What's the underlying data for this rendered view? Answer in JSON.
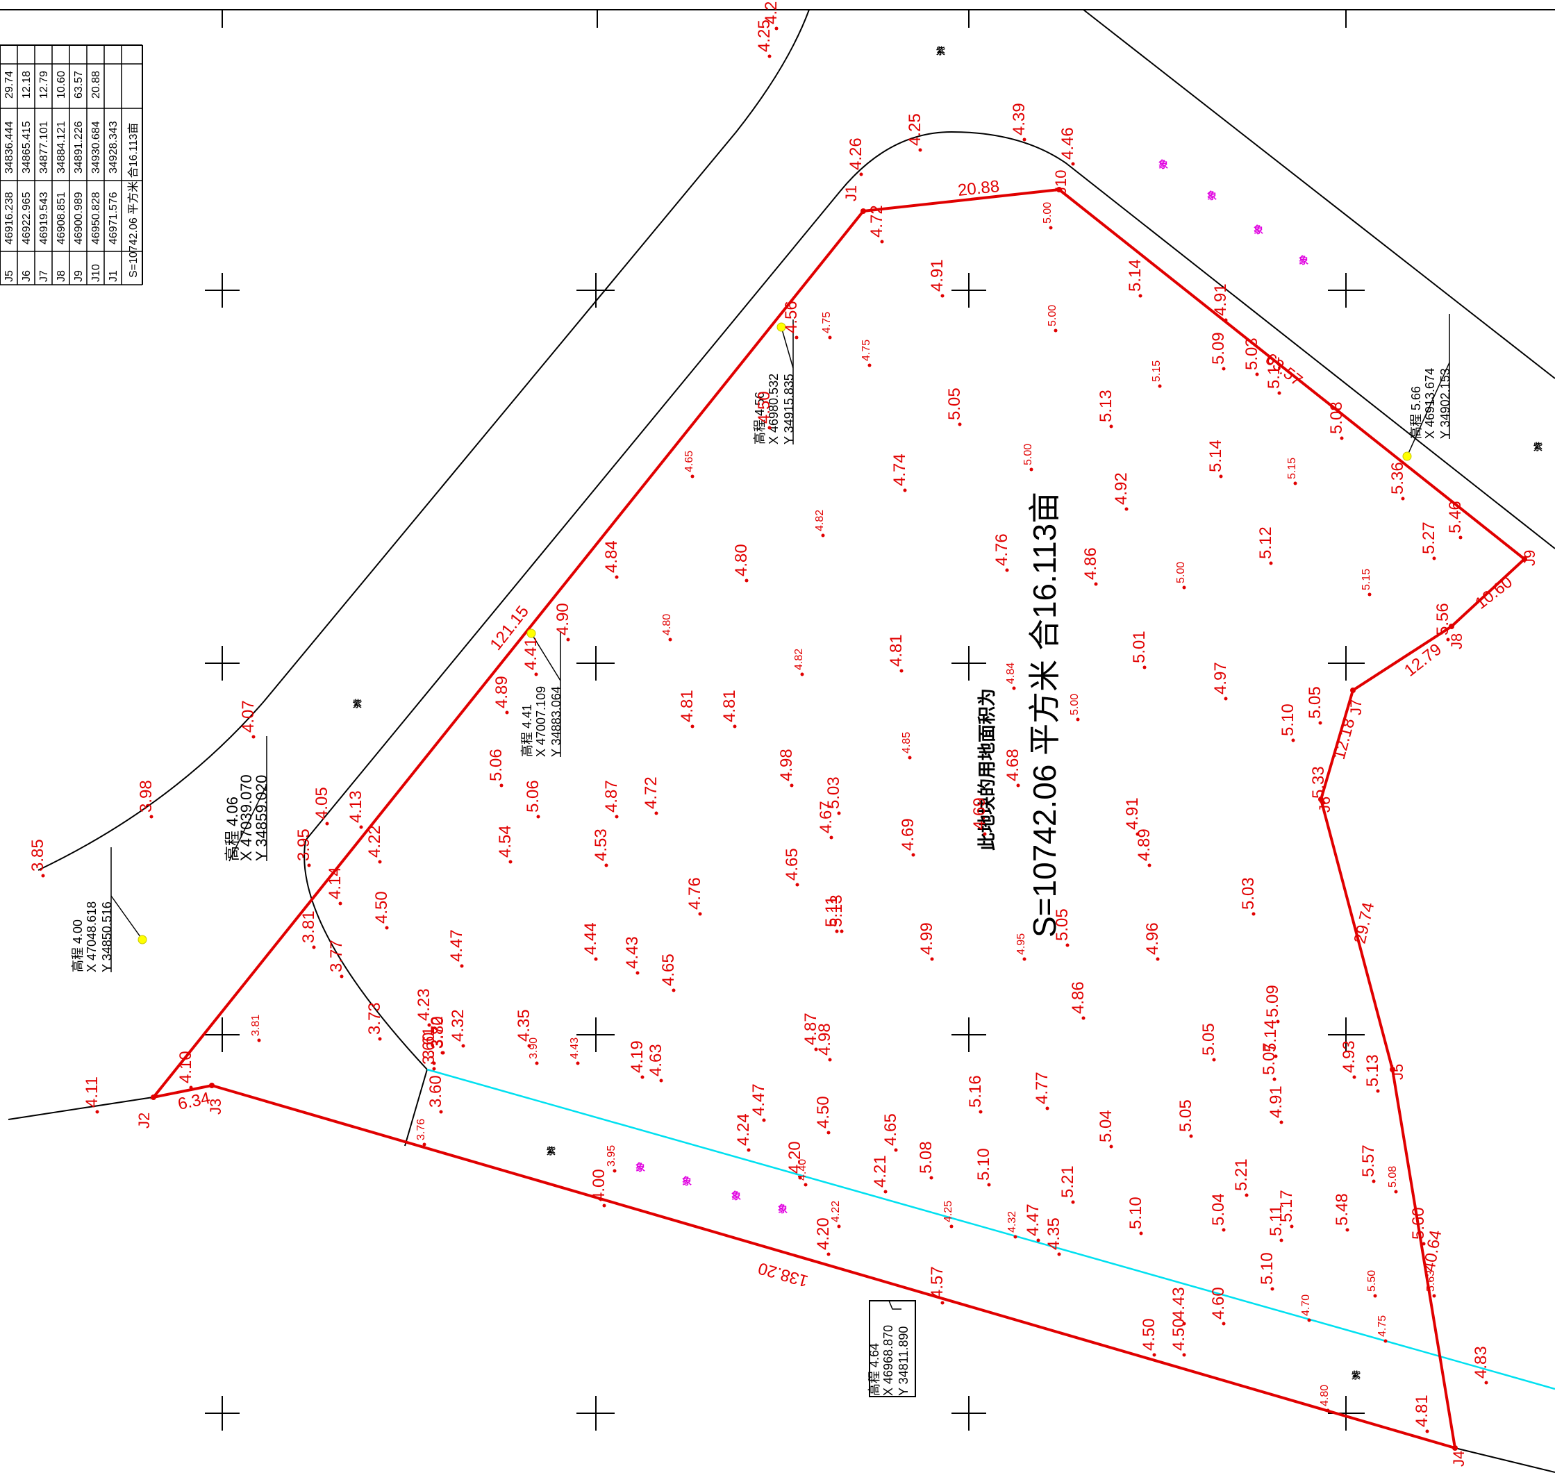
{
  "coord_table": {
    "rows": [
      {
        "id": "J5",
        "x": "46916.238",
        "y": "34836.444",
        "d": "29.74"
      },
      {
        "id": "J6",
        "x": "46922.965",
        "y": "34865.415",
        "d": "12.18"
      },
      {
        "id": "J7",
        "x": "46919.543",
        "y": "34877.101",
        "d": "12.79"
      },
      {
        "id": "J8",
        "x": "46908.851",
        "y": "34884.121",
        "d": "10.60"
      },
      {
        "id": "J9",
        "x": "46900.989",
        "y": "34891.226",
        "d": "63.57"
      },
      {
        "id": "J10",
        "x": "46950.828",
        "y": "34930.684",
        "d": "20.88"
      },
      {
        "id": "J1",
        "x": "46971.576",
        "y": "34928.343",
        "d": ""
      }
    ],
    "footer": "S=10742.06 平方米 合16.113亩"
  },
  "boundary_points": [
    {
      "id": "J1"
    },
    {
      "id": "J10"
    },
    {
      "id": "J9"
    },
    {
      "id": "J8"
    },
    {
      "id": "J7"
    },
    {
      "id": "J6"
    },
    {
      "id": "J5"
    },
    {
      "id": "J4"
    },
    {
      "id": "J3"
    },
    {
      "id": "J2"
    }
  ],
  "edge_lengths": [
    "20.88",
    "63.57",
    "10.60",
    "12.79",
    "12.18",
    "29.74",
    "40.64",
    "138.20",
    "6.34",
    "121.15"
  ],
  "area": {
    "caption": "此地块的用地面积为",
    "value": "S=10742.06  平方米  合16.113亩"
  },
  "callouts": [
    {
      "elev": "4.56",
      "x": "X 46980.532",
      "y": "Y 34915.835"
    },
    {
      "elev": "5.66",
      "x": "X 46913.674",
      "y": "Y 34902.153"
    },
    {
      "elev": "4.41",
      "x": "X 47007.109",
      "y": "Y 34883.064"
    },
    {
      "elev": "4.06",
      "x": "X 47039.070",
      "y": "Y 34859.020"
    },
    {
      "elev": "4.00",
      "x": "X 47048.618",
      "y": "Y 34850.516"
    },
    {
      "elev": "4.64",
      "x": "X 46968.870",
      "y": "Y 34811.890"
    }
  ],
  "elevations_red": [
    "4.26",
    "4.25",
    "4.39",
    "4.46",
    "4.72",
    "5.00",
    "4.91",
    "5.14",
    "4.75",
    "4.56",
    "4.50",
    "4.75",
    "5.00",
    "5.05",
    "5.15",
    "4.91",
    "5.09",
    "5.03",
    "5.12",
    "5.13",
    "4.65",
    "4.74",
    "5.00",
    "4.82",
    "4.92",
    "5.14",
    "5.15",
    "5.08",
    "5.36",
    "5.46",
    "5.27",
    "4.84",
    "4.80",
    "4.76",
    "4.86",
    "5.00",
    "5.12",
    "5.15",
    "4.90",
    "4.41",
    "4.80",
    "4.82",
    "4.81",
    "4.84",
    "5.01",
    "4.97",
    "5.05",
    "5.56",
    "4.89",
    "4.81",
    "4.81",
    "5.00",
    "5.10",
    "4.85",
    "4.98",
    "5.03",
    "4.68",
    "5.06",
    "5.06",
    "4.87",
    "4.72",
    "4.67",
    "4.69",
    "4.69",
    "4.91",
    "5.33",
    "4.05",
    "4.13",
    "4.22",
    "4.54",
    "4.53",
    "4.89",
    "4.14",
    "4.65",
    "4.76",
    "3.95",
    "4.50",
    "5.11",
    "5.13",
    "5.05",
    "4.99",
    "4.95",
    "4.96",
    "5.03",
    "4.44",
    "4.47",
    "4.43",
    "4.65",
    "3.81",
    "3.77",
    "3.73",
    "4.23",
    "3.60",
    "3.61",
    "3.72",
    "4.32",
    "3.80",
    "4.35",
    "3.90",
    "4.43",
    "4.19",
    "4.63",
    "4.87",
    "4.98",
    "4.86",
    "5.09",
    "5.05",
    "5.14",
    "5.07",
    "4.93",
    "5.13",
    "3.60",
    "3.76",
    "4.47",
    "4.24",
    "4.50",
    "4.77",
    "5.16",
    "4.65",
    "5.08",
    "5.04",
    "5.05",
    "4.91",
    "3.95",
    "4.20",
    "4.40",
    "4.21",
    "5.10",
    "5.21",
    "4.00",
    "4.22",
    "4.25",
    "4.32",
    "4.47",
    "4.35",
    "5.10",
    "5.04",
    "5.21",
    "5.11",
    "5.17",
    "5.57",
    "5.08",
    "5.48",
    "5.10",
    "4.20",
    "4.57",
    "4.43",
    "4.60",
    "5.60",
    "5.63",
    "5.50",
    "4.70",
    "4.75",
    "4.50",
    "4.50",
    "4.80",
    "4.81",
    "4.83",
    "3.85",
    "3.98",
    "4.07",
    "4.11",
    "4.10",
    "3.81",
    "4.25",
    "4.2"
  ]
}
